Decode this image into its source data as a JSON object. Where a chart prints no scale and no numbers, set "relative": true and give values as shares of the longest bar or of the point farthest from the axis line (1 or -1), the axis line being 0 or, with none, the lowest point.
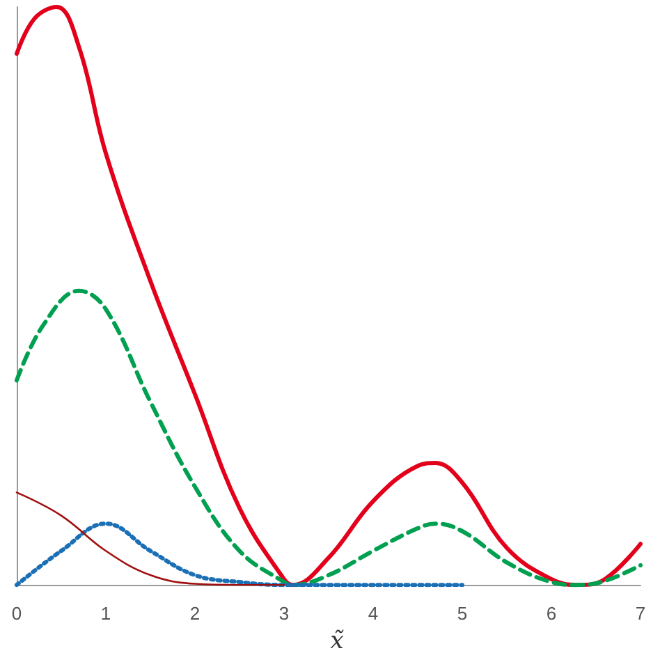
{
  "chart_data": {
    "type": "line",
    "relative": true,
    "xlabel": "x̃",
    "xlim": [
      0,
      7
    ],
    "xticks": [
      0,
      1,
      2,
      3,
      4,
      5,
      6,
      7
    ],
    "marker": "none",
    "grid": false,
    "series": [
      {
        "color": "#e3001b",
        "line_style": "solid",
        "x": [
          0,
          0.2,
          0.45,
          0.7,
          1,
          1.5,
          2,
          2.5,
          3,
          3.1,
          3.5,
          4,
          4.5,
          4.7,
          5,
          5.5,
          6,
          6.3,
          6.6,
          7
        ],
        "values": [
          0.919,
          0.98,
          1.0,
          0.93,
          0.747,
          0.526,
          0.33,
          0.133,
          0.01,
          0,
          0.047,
          0.145,
          0.206,
          0.211,
          0.177,
          0.064,
          0.01,
          0,
          0.01,
          0.071
        ]
      },
      {
        "color": "#00a050",
        "line_style": "dashed",
        "x": [
          0,
          0.3,
          0.7,
          1,
          1.5,
          2,
          2.5,
          3,
          3.1,
          3.5,
          4,
          4.5,
          4.7,
          5,
          5.5,
          6,
          6.3,
          6.6,
          7
        ],
        "values": [
          0.354,
          0.45,
          0.509,
          0.477,
          0.317,
          0.17,
          0.059,
          0.005,
          0,
          0.017,
          0.059,
          0.098,
          0.106,
          0.093,
          0.039,
          0.005,
          0,
          0.007,
          0.034
        ]
      },
      {
        "color": "#1a6fb5",
        "line_style": "dotted",
        "x": [
          0,
          0.5,
          1,
          1.5,
          2,
          2.5,
          3,
          4,
          5
        ],
        "values": [
          0,
          0.059,
          0.106,
          0.059,
          0.017,
          0.005,
          0,
          0,
          0
        ]
      },
      {
        "color": "#a01010",
        "line_style": "solid",
        "x": [
          0,
          0.5,
          1,
          1.5,
          2,
          2.5,
          3
        ],
        "values": [
          0.16,
          0.12,
          0.059,
          0.017,
          0.002,
          0,
          0
        ]
      }
    ]
  }
}
